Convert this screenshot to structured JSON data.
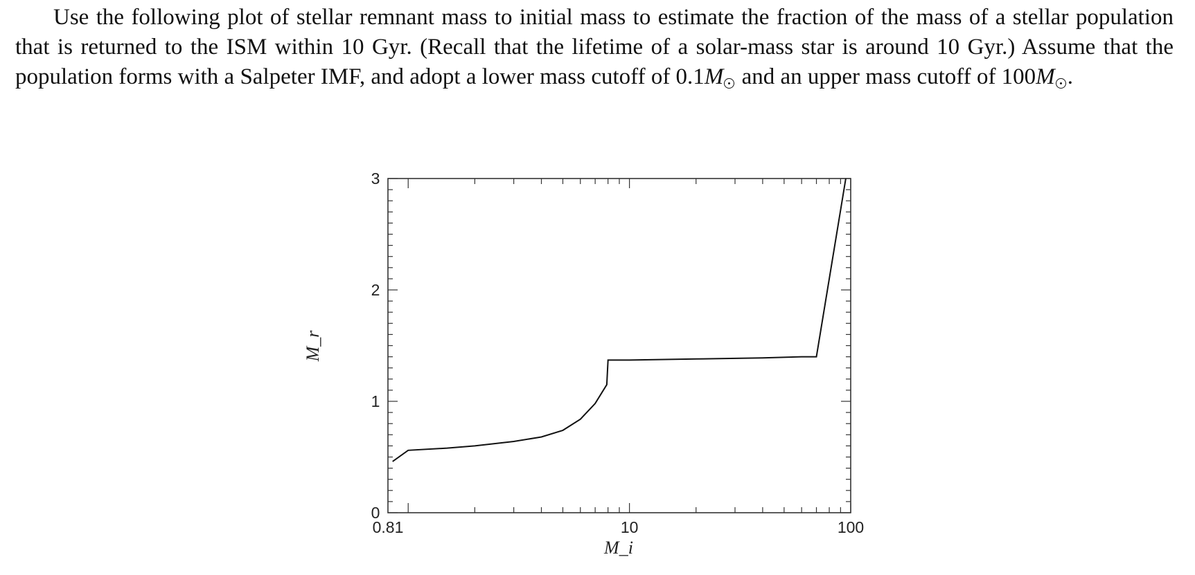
{
  "problem": {
    "t1": "Use the following plot of stellar remnant mass to initial mass to estimate the fraction of the mass of a stellar population that is returned to the ISM within 10 Gyr. (Recall that the lifetime of a solar-mass star is around 10 Gyr.) Assume that the population forms with a Salpeter IMF, and adopt a lower mass cutoff of 0.1",
    "m1": "M",
    "t2": " and an upper mass cutoff of 100",
    "m2": "M",
    "t3": "."
  },
  "chart_data": {
    "type": "line",
    "xscale": "log",
    "xlim": [
      0.81,
      100
    ],
    "ylim": [
      0,
      3
    ],
    "xlabel": "M_i",
    "ylabel": "M_r",
    "x_tick_labels": [
      "0.81",
      "10",
      "100"
    ],
    "y_tick_labels": [
      "0",
      "1",
      "2",
      "3"
    ],
    "grid": false,
    "series": [
      {
        "x": [
          0.85,
          1.0,
          1.5,
          2.0,
          3.0,
          4.0,
          5.0,
          6.0,
          7.0,
          7.9,
          8.0,
          10.0,
          20.0,
          40.0,
          60.0,
          70.0,
          95.0
        ],
        "y": [
          0.46,
          0.56,
          0.58,
          0.6,
          0.64,
          0.68,
          0.74,
          0.84,
          0.98,
          1.15,
          1.37,
          1.37,
          1.38,
          1.39,
          1.4,
          1.4,
          3.0
        ]
      }
    ]
  }
}
